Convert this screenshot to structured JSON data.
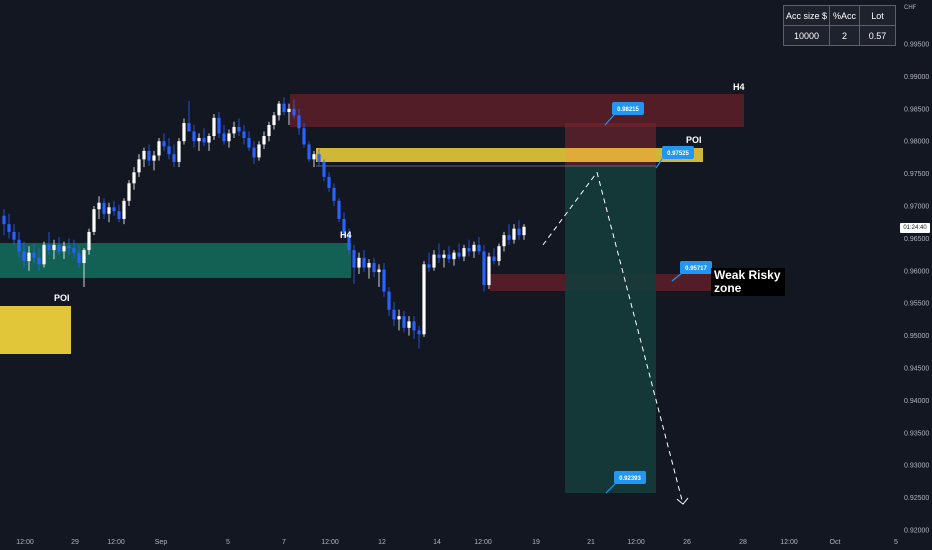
{
  "axis": {
    "currency": "CHF",
    "y_ticks": [
      "0.99500",
      "0.99000",
      "0.98500",
      "0.98000",
      "0.97500",
      "0.97000",
      "0.96500",
      "0.96000",
      "0.95500",
      "0.95000",
      "0.94500",
      "0.94000",
      "0.93500",
      "0.93000",
      "0.92500",
      "0.92000"
    ],
    "y_tick_values": [
      0.995,
      0.99,
      0.985,
      0.98,
      0.975,
      0.97,
      0.965,
      0.96,
      0.955,
      0.95,
      0.945,
      0.94,
      0.935,
      0.93,
      0.925,
      0.92
    ],
    "x_ticks": [
      "12:00",
      "29",
      "12:00",
      "Sep",
      "5",
      "7",
      "12:00",
      "12",
      "14",
      "12:00",
      "19",
      "21",
      "12:00",
      "26",
      "28",
      "12:00",
      "Oct",
      "5"
    ],
    "current_price_tag": "01:24:40"
  },
  "table": {
    "headers": [
      "Acc size $",
      "%Acc",
      "Lot"
    ],
    "values": [
      "10000",
      "2",
      "0.57"
    ]
  },
  "zones": {
    "h4_top_label": "H4",
    "h4_mid_label": "H4",
    "poi_right_label": "POI",
    "poi_left_label": "POI",
    "weak_label": "Weak Risky zone"
  },
  "callouts": {
    "upper": "0.98215",
    "poi": "0.97525",
    "weak": "0.95717",
    "target": "0.92393"
  },
  "colors": {
    "background": "#131722",
    "bull": "#ffffff",
    "bear": "#2962ff",
    "h4_zone": "#6d1f2a",
    "poi_zone": "#e1c639",
    "demand_zone": "#14695a",
    "trade_box": "#153c3b",
    "callout": "#2196f3"
  },
  "chart_data": {
    "type": "candlestick",
    "ylim": [
      0.9185,
      0.9985
    ],
    "candles": [
      [
        0.9685,
        0.9695,
        0.9655,
        0.9672
      ],
      [
        0.9672,
        0.9688,
        0.965,
        0.966
      ],
      [
        0.966,
        0.9672,
        0.964,
        0.9648
      ],
      [
        0.9648,
        0.966,
        0.962,
        0.963
      ],
      [
        0.963,
        0.9645,
        0.9605,
        0.9615
      ],
      [
        0.9615,
        0.9638,
        0.96,
        0.9628
      ],
      [
        0.9628,
        0.9642,
        0.9612,
        0.962
      ],
      [
        0.962,
        0.9635,
        0.96,
        0.961
      ],
      [
        0.961,
        0.9645,
        0.9605,
        0.964
      ],
      [
        0.964,
        0.966,
        0.9625,
        0.9632
      ],
      [
        0.9632,
        0.9648,
        0.9618,
        0.964
      ],
      [
        0.964,
        0.9652,
        0.9625,
        0.963
      ],
      [
        0.963,
        0.9645,
        0.9618,
        0.9638
      ],
      [
        0.9638,
        0.965,
        0.9625,
        0.9635
      ],
      [
        0.9635,
        0.9648,
        0.962,
        0.9628
      ],
      [
        0.9628,
        0.964,
        0.9605,
        0.9612
      ],
      [
        0.9612,
        0.9635,
        0.9575,
        0.9632
      ],
      [
        0.9632,
        0.9665,
        0.9625,
        0.966
      ],
      [
        0.966,
        0.97,
        0.9655,
        0.9695
      ],
      [
        0.9695,
        0.9715,
        0.968,
        0.9705
      ],
      [
        0.9705,
        0.9712,
        0.968,
        0.9688
      ],
      [
        0.9688,
        0.9705,
        0.9675,
        0.9698
      ],
      [
        0.9698,
        0.9708,
        0.9685,
        0.9692
      ],
      [
        0.9692,
        0.9702,
        0.9675,
        0.968
      ],
      [
        0.968,
        0.9712,
        0.9672,
        0.9708
      ],
      [
        0.9708,
        0.974,
        0.97,
        0.9735
      ],
      [
        0.9735,
        0.976,
        0.9725,
        0.9752
      ],
      [
        0.9752,
        0.978,
        0.9745,
        0.9772
      ],
      [
        0.9772,
        0.979,
        0.976,
        0.9785
      ],
      [
        0.9785,
        0.9795,
        0.9762,
        0.977
      ],
      [
        0.977,
        0.9785,
        0.9755,
        0.9778
      ],
      [
        0.9778,
        0.9805,
        0.977,
        0.98
      ],
      [
        0.98,
        0.9812,
        0.9785,
        0.9792
      ],
      [
        0.9792,
        0.9805,
        0.9772,
        0.978
      ],
      [
        0.978,
        0.9795,
        0.976,
        0.9768
      ],
      [
        0.9768,
        0.9805,
        0.976,
        0.98
      ],
      [
        0.98,
        0.9835,
        0.9795,
        0.9828
      ],
      [
        0.9828,
        0.9862,
        0.982,
        0.9815
      ],
      [
        0.9815,
        0.9825,
        0.979,
        0.98
      ],
      [
        0.98,
        0.9812,
        0.9785,
        0.9805
      ],
      [
        0.9805,
        0.982,
        0.9792,
        0.9798
      ],
      [
        0.9798,
        0.9812,
        0.9785,
        0.9808
      ],
      [
        0.9808,
        0.9842,
        0.9802,
        0.9836
      ],
      [
        0.9836,
        0.9845,
        0.9805,
        0.9812
      ],
      [
        0.9812,
        0.9825,
        0.9795,
        0.98
      ],
      [
        0.98,
        0.9818,
        0.979,
        0.9812
      ],
      [
        0.9812,
        0.983,
        0.9805,
        0.9822
      ],
      [
        0.9822,
        0.9835,
        0.9808,
        0.9815
      ],
      [
        0.9815,
        0.9825,
        0.9795,
        0.9805
      ],
      [
        0.9805,
        0.9815,
        0.9785,
        0.979
      ],
      [
        0.979,
        0.98,
        0.9765,
        0.9775
      ],
      [
        0.9775,
        0.98,
        0.977,
        0.9795
      ],
      [
        0.9795,
        0.9815,
        0.9788,
        0.9808
      ],
      [
        0.9808,
        0.983,
        0.98,
        0.9825
      ],
      [
        0.9825,
        0.9845,
        0.9818,
        0.984
      ],
      [
        0.984,
        0.9862,
        0.9832,
        0.9858
      ],
      [
        0.9858,
        0.9868,
        0.984,
        0.9845
      ],
      [
        0.9845,
        0.9858,
        0.9825,
        0.985
      ],
      [
        0.985,
        0.9865,
        0.9835,
        0.984
      ],
      [
        0.984,
        0.985,
        0.981,
        0.982
      ],
      [
        0.982,
        0.9828,
        0.979,
        0.9795
      ],
      [
        0.9795,
        0.98,
        0.9768,
        0.9772
      ],
      [
        0.9772,
        0.9785,
        0.976,
        0.978
      ],
      [
        0.978,
        0.9788,
        0.9762,
        0.9768
      ],
      [
        0.9768,
        0.9772,
        0.9738,
        0.9745
      ],
      [
        0.9745,
        0.9752,
        0.9722,
        0.9728
      ],
      [
        0.9728,
        0.9735,
        0.97,
        0.9708
      ],
      [
        0.9708,
        0.9712,
        0.9675,
        0.968
      ],
      [
        0.968,
        0.969,
        0.965,
        0.9658
      ],
      [
        0.9658,
        0.9665,
        0.9625,
        0.9632
      ],
      [
        0.9632,
        0.964,
        0.958,
        0.9605
      ],
      [
        0.9605,
        0.9628,
        0.9595,
        0.962
      ],
      [
        0.962,
        0.9632,
        0.9598,
        0.9605
      ],
      [
        0.9605,
        0.9618,
        0.9588,
        0.9612
      ],
      [
        0.9612,
        0.962,
        0.959,
        0.9598
      ],
      [
        0.9598,
        0.961,
        0.9575,
        0.9602
      ],
      [
        0.9602,
        0.9612,
        0.956,
        0.9568
      ],
      [
        0.9568,
        0.9575,
        0.953,
        0.954
      ],
      [
        0.954,
        0.9552,
        0.9515,
        0.9525
      ],
      [
        0.9525,
        0.954,
        0.9508,
        0.953
      ],
      [
        0.953,
        0.9538,
        0.9505,
        0.9512
      ],
      [
        0.9512,
        0.953,
        0.95,
        0.9522
      ],
      [
        0.9522,
        0.953,
        0.9495,
        0.9508
      ],
      [
        0.9508,
        0.9515,
        0.948,
        0.9502
      ],
      [
        0.9502,
        0.9615,
        0.9498,
        0.961
      ],
      [
        0.961,
        0.9628,
        0.9598,
        0.9605
      ],
      [
        0.9605,
        0.9632,
        0.96,
        0.9625
      ],
      [
        0.9625,
        0.9642,
        0.9612,
        0.962
      ],
      [
        0.962,
        0.9632,
        0.9605,
        0.9625
      ],
      [
        0.9625,
        0.9638,
        0.9612,
        0.9618
      ],
      [
        0.9618,
        0.9632,
        0.9608,
        0.9628
      ],
      [
        0.9628,
        0.9642,
        0.9618,
        0.9622
      ],
      [
        0.9622,
        0.964,
        0.9615,
        0.9635
      ],
      [
        0.9635,
        0.9648,
        0.9622,
        0.963
      ],
      [
        0.963,
        0.9645,
        0.962,
        0.964
      ],
      [
        0.964,
        0.9652,
        0.9625,
        0.963
      ],
      [
        0.963,
        0.964,
        0.9568,
        0.9578
      ],
      [
        0.9578,
        0.9628,
        0.9572,
        0.9622
      ],
      [
        0.9622,
        0.9635,
        0.961,
        0.9615
      ],
      [
        0.9615,
        0.9642,
        0.9608,
        0.9638
      ],
      [
        0.9638,
        0.966,
        0.963,
        0.9655
      ],
      [
        0.9655,
        0.9672,
        0.964,
        0.9648
      ],
      [
        0.9648,
        0.9672,
        0.9642,
        0.9665
      ],
      [
        0.9665,
        0.9678,
        0.9648,
        0.9655
      ],
      [
        0.9655,
        0.9672,
        0.9648,
        0.9668
      ]
    ],
    "projection": [
      [
        0.964,
        0.9752
      ],
      [
        0.9752,
        0.924
      ]
    ]
  }
}
